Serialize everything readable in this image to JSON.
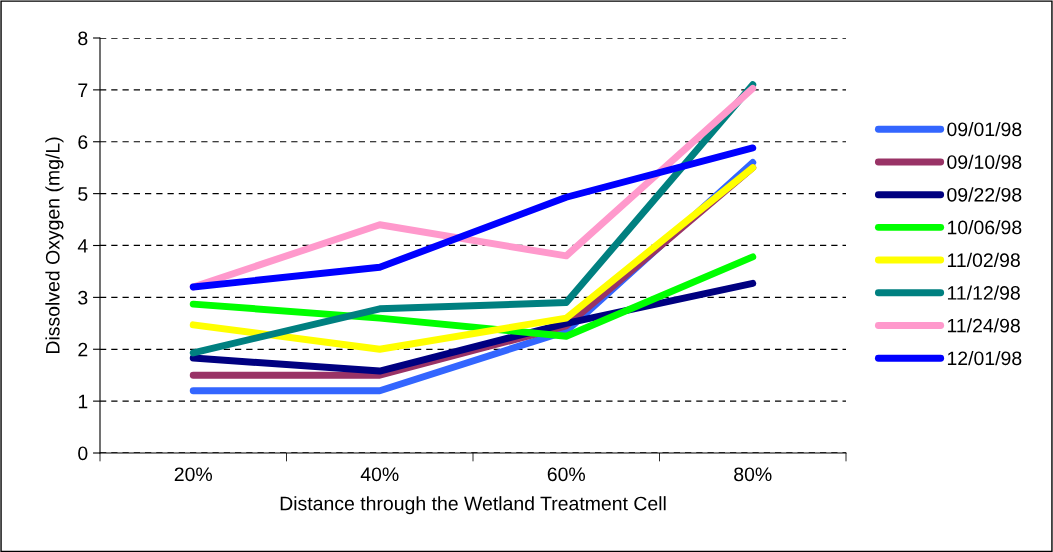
{
  "chart_data": {
    "type": "line",
    "xlabel": "Distance through the Wetland Treatment Cell",
    "ylabel": "Dissolved Oxygen (mg/L)",
    "categories": [
      "20%",
      "40%",
      "60%",
      "80%"
    ],
    "ylim": [
      0,
      8
    ],
    "yticks": [
      0,
      1,
      2,
      3,
      4,
      5,
      6,
      7,
      8
    ],
    "grid": "y",
    "legend": "right",
    "marker": "none",
    "line_style": "solid",
    "series": [
      {
        "name": "09/01/98",
        "color": "#3366ff",
        "values": [
          1.2,
          1.2,
          2.35,
          5.6
        ]
      },
      {
        "name": "09/10/98",
        "color": "#993366",
        "values": [
          1.5,
          1.5,
          2.45,
          5.5
        ]
      },
      {
        "name": "09/22/98",
        "color": "#000080",
        "values": [
          1.83,
          1.58,
          2.5,
          3.27
        ]
      },
      {
        "name": "10/06/98",
        "color": "#00ff00",
        "values": [
          2.87,
          2.6,
          2.25,
          3.78
        ]
      },
      {
        "name": "11/02/98",
        "color": "#ffff00",
        "values": [
          2.47,
          2.0,
          2.6,
          5.5
        ]
      },
      {
        "name": "11/12/98",
        "color": "#008080",
        "values": [
          1.93,
          2.78,
          2.9,
          7.1
        ]
      },
      {
        "name": "11/24/98",
        "color": "#ff99cc",
        "values": [
          3.2,
          4.4,
          3.8,
          7.03
        ]
      },
      {
        "name": "12/01/98",
        "color": "#0000ff",
        "values": [
          3.2,
          3.58,
          4.93,
          5.88
        ]
      }
    ]
  }
}
